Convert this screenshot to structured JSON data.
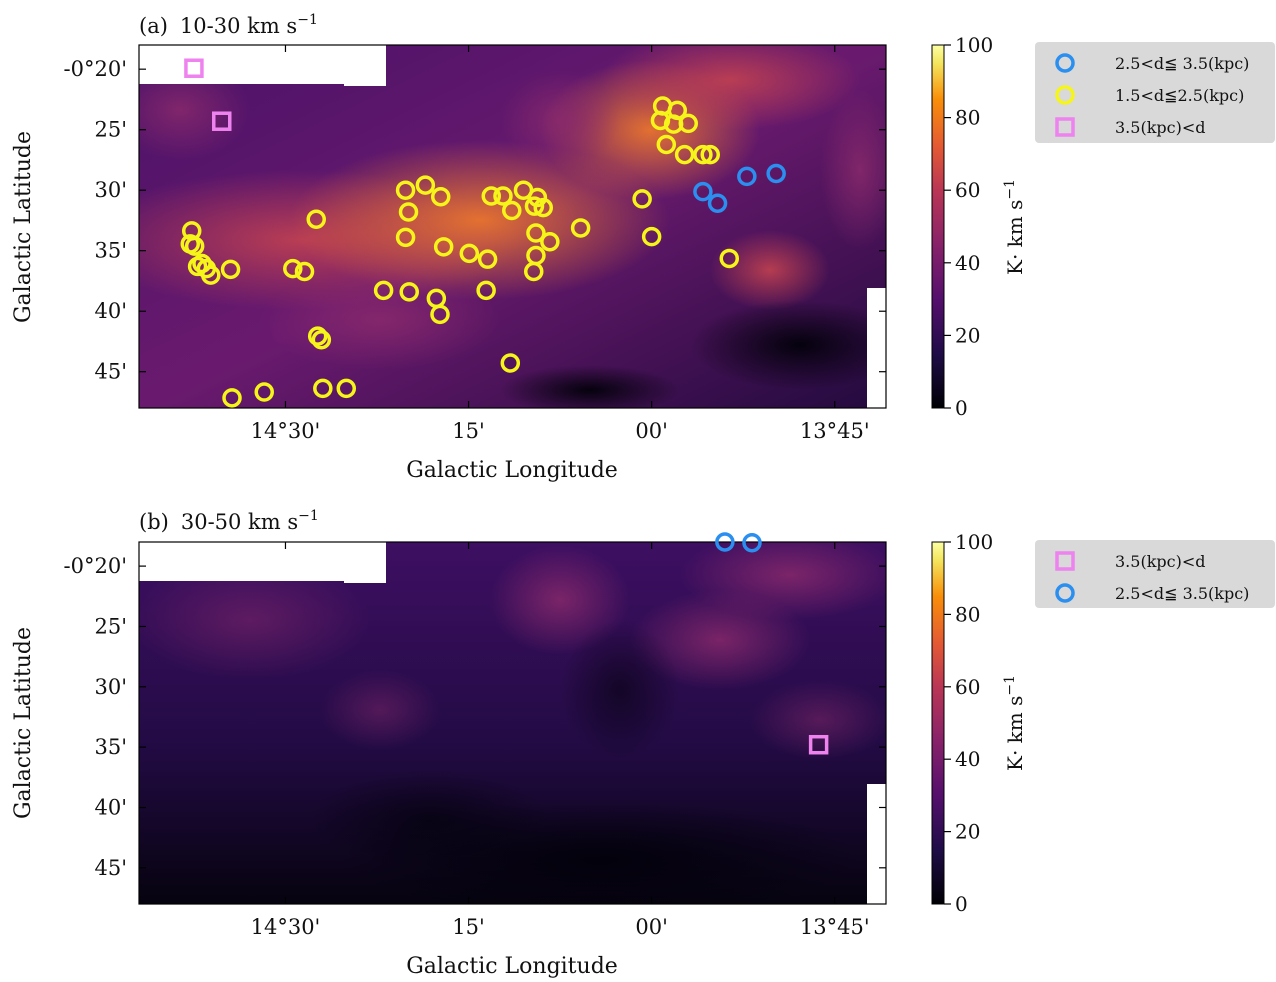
{
  "colors": {
    "blue_marker": "#2b8ff0",
    "yellow_marker": "#f5f51a",
    "pink_marker": "#ee82ee",
    "legend_bg": "#d9d9d9",
    "colormap": "inferno"
  },
  "chart_data": [
    {
      "type": "scatter",
      "panel": "(a)",
      "title_prefix": "(a)",
      "title_range": "10-30 km s",
      "title_exp": "−1",
      "xlabel": "Galactic Longitude",
      "ylabel": "Galactic Latitude",
      "x_unit": "degrees (Galactic longitude, increasing to the left)",
      "y_unit": "degrees (Galactic latitude)",
      "xlim": [
        14.7,
        13.68
      ],
      "ylim": [
        -0.8,
        -0.3
      ],
      "x_ticks": [
        {
          "value": 14.5,
          "label": "14°30'"
        },
        {
          "value": 14.25,
          "label": "15'"
        },
        {
          "value": 14.0,
          "label": "00'"
        },
        {
          "value": 13.75,
          "label": "13°45'"
        }
      ],
      "y_ticks": [
        {
          "value": -0.3333,
          "label": "-0°20'"
        },
        {
          "value": -0.4167,
          "label": "25'"
        },
        {
          "value": -0.5,
          "label": "30'"
        },
        {
          "value": -0.5833,
          "label": "35'"
        },
        {
          "value": -0.6667,
          "label": "40'"
        },
        {
          "value": -0.75,
          "label": "45'"
        }
      ],
      "colorbar": {
        "label": "K· km s",
        "label_exp": "−1",
        "range": [
          0,
          100
        ],
        "ticks": [
          "0",
          "20",
          "40",
          "60",
          "80",
          "100"
        ]
      },
      "legend_position": "right, outside the axes",
      "legend": [
        {
          "key": "blue",
          "label": "2.5<d≦ 3.5(kpc)",
          "marker": "circle"
        },
        {
          "key": "yellow",
          "label": "1.5<d≦2.5(kpc)",
          "marker": "circle"
        },
        {
          "key": "pink",
          "label": "3.5(kpc)<d",
          "marker": "square"
        }
      ],
      "series": [
        {
          "key": "blue",
          "marker": "circle",
          "points": [
            [
              13.93,
              -0.502
            ],
            [
              13.91,
              -0.518
            ],
            [
              13.87,
              -0.481
            ],
            [
              13.83,
              -0.477
            ]
          ]
        },
        {
          "key": "yellow",
          "marker": "circle",
          "points": [
            [
              13.985,
              -0.384
            ],
            [
              13.988,
              -0.404
            ],
            [
              13.965,
              -0.39
            ],
            [
              13.97,
              -0.409
            ],
            [
              13.95,
              -0.408
            ],
            [
              13.98,
              -0.437
            ],
            [
              13.955,
              -0.451
            ],
            [
              13.93,
              -0.451
            ],
            [
              13.92,
              -0.451
            ],
            [
              14.013,
              -0.512
            ],
            [
              14.0,
              -0.564
            ],
            [
              13.894,
              -0.594
            ],
            [
              14.628,
              -0.556
            ],
            [
              14.63,
              -0.574
            ],
            [
              14.624,
              -0.577
            ],
            [
              14.62,
              -0.605
            ],
            [
              14.608,
              -0.608
            ],
            [
              14.614,
              -0.601
            ],
            [
              14.602,
              -0.617
            ],
            [
              14.575,
              -0.609
            ],
            [
              14.49,
              -0.608
            ],
            [
              14.474,
              -0.612
            ],
            [
              14.458,
              -0.54
            ],
            [
              14.336,
              -0.5
            ],
            [
              14.332,
              -0.53
            ],
            [
              14.336,
              -0.565
            ],
            [
              14.309,
              -0.493
            ],
            [
              14.288,
              -0.509
            ],
            [
              14.284,
              -0.578
            ],
            [
              14.249,
              -0.587
            ],
            [
              14.224,
              -0.595
            ],
            [
              14.219,
              -0.508
            ],
            [
              14.203,
              -0.508
            ],
            [
              14.191,
              -0.528
            ],
            [
              14.175,
              -0.5
            ],
            [
              14.156,
              -0.51
            ],
            [
              14.16,
              -0.522
            ],
            [
              14.148,
              -0.524
            ],
            [
              14.158,
              -0.559
            ],
            [
              14.139,
              -0.571
            ],
            [
              14.158,
              -0.59
            ],
            [
              14.161,
              -0.612
            ],
            [
              14.097,
              -0.552
            ],
            [
              14.226,
              -0.638
            ],
            [
              14.366,
              -0.638
            ],
            [
              14.331,
              -0.64
            ],
            [
              14.294,
              -0.649
            ],
            [
              14.289,
              -0.671
            ],
            [
              14.456,
              -0.701
            ],
            [
              14.451,
              -0.706
            ],
            [
              14.193,
              -0.738
            ],
            [
              14.573,
              -0.786
            ],
            [
              14.529,
              -0.778
            ],
            [
              14.449,
              -0.773
            ],
            [
              14.417,
              -0.773
            ]
          ]
        },
        {
          "key": "pink",
          "marker": "square",
          "points": [
            [
              14.625,
              -0.332
            ],
            [
              14.587,
              -0.405
            ]
          ]
        }
      ]
    },
    {
      "type": "scatter",
      "panel": "(b)",
      "title_prefix": "(b)",
      "title_range": "30-50 km s",
      "title_exp": "−1",
      "xlabel": "Galactic Longitude",
      "ylabel": "Galactic Latitude",
      "x_unit": "degrees (Galactic longitude, increasing to the left)",
      "y_unit": "degrees (Galactic latitude)",
      "xlim": [
        14.7,
        13.68
      ],
      "ylim": [
        -0.8,
        -0.3
      ],
      "x_ticks": [
        {
          "value": 14.5,
          "label": "14°30'"
        },
        {
          "value": 14.25,
          "label": "15'"
        },
        {
          "value": 14.0,
          "label": "00'"
        },
        {
          "value": 13.75,
          "label": "13°45'"
        }
      ],
      "y_ticks": [
        {
          "value": -0.3333,
          "label": "-0°20'"
        },
        {
          "value": -0.4167,
          "label": "25'"
        },
        {
          "value": -0.5,
          "label": "30'"
        },
        {
          "value": -0.5833,
          "label": "35'"
        },
        {
          "value": -0.6667,
          "label": "40'"
        },
        {
          "value": -0.75,
          "label": "45'"
        }
      ],
      "colorbar": {
        "label": "K· km s",
        "label_exp": "−1",
        "range": [
          0,
          100
        ],
        "ticks": [
          "0",
          "20",
          "40",
          "60",
          "80",
          "100"
        ]
      },
      "legend_position": "right, outside the axes",
      "legend": [
        {
          "key": "pink",
          "label": "3.5(kpc)<d",
          "marker": "square"
        },
        {
          "key": "blue",
          "label": "2.5<d≦ 3.5(kpc)",
          "marker": "circle"
        }
      ],
      "series": [
        {
          "key": "blue",
          "marker": "circle",
          "points": [
            [
              13.9,
              -0.3
            ],
            [
              13.863,
              -0.301
            ]
          ]
        },
        {
          "key": "pink",
          "marker": "square",
          "points": [
            [
              13.772,
              -0.58
            ]
          ]
        },
        {
          "key": "yellow",
          "marker": "circle",
          "points": []
        }
      ]
    }
  ]
}
